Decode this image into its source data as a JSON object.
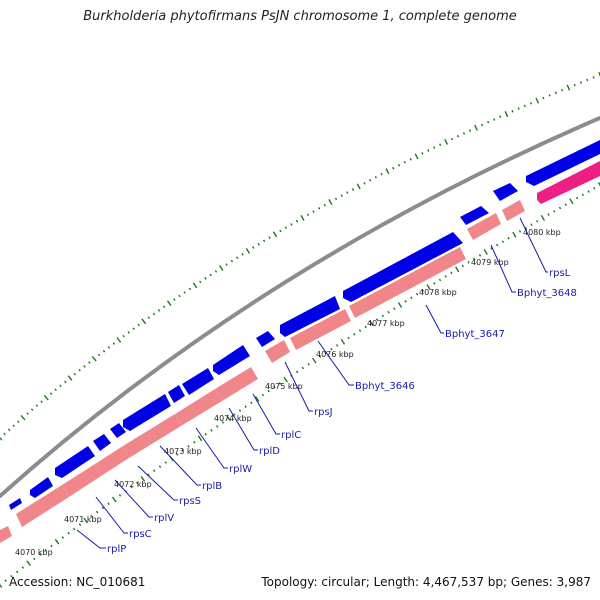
{
  "title": "Burkholderia phytofirmans PsJN chromosome 1, complete genome",
  "footer": {
    "accession": "Accession: NC_010681",
    "summary": "Topology: circular; Length: 4,467,537 bp; Genes: 3,987"
  },
  "colors": {
    "backbone": "#8c8c8c",
    "forward_gene": "#0000e6",
    "reverse_gene": "#f0868a",
    "reverse_gene_highlight": "#ee1f82",
    "tick": "#1a7a1a",
    "label_line": "#1a1aa8"
  },
  "ticks": [
    "4070 kbp",
    "4071 kbp",
    "4072 kbp",
    "4073 kbp",
    "4074 kbp",
    "4075 kbp",
    "4076 kbp",
    "4077 kbp",
    "4078 kbp",
    "4079 kbp",
    "4080 kbp"
  ],
  "genes": [
    "rplP",
    "rpsC",
    "rplV",
    "rpsS",
    "rplB",
    "rplW",
    "rplD",
    "rplC",
    "rpsJ",
    "Bphyt_3646",
    "Bphyt_3647",
    "Bphyt_3648",
    "rpsL"
  ]
}
